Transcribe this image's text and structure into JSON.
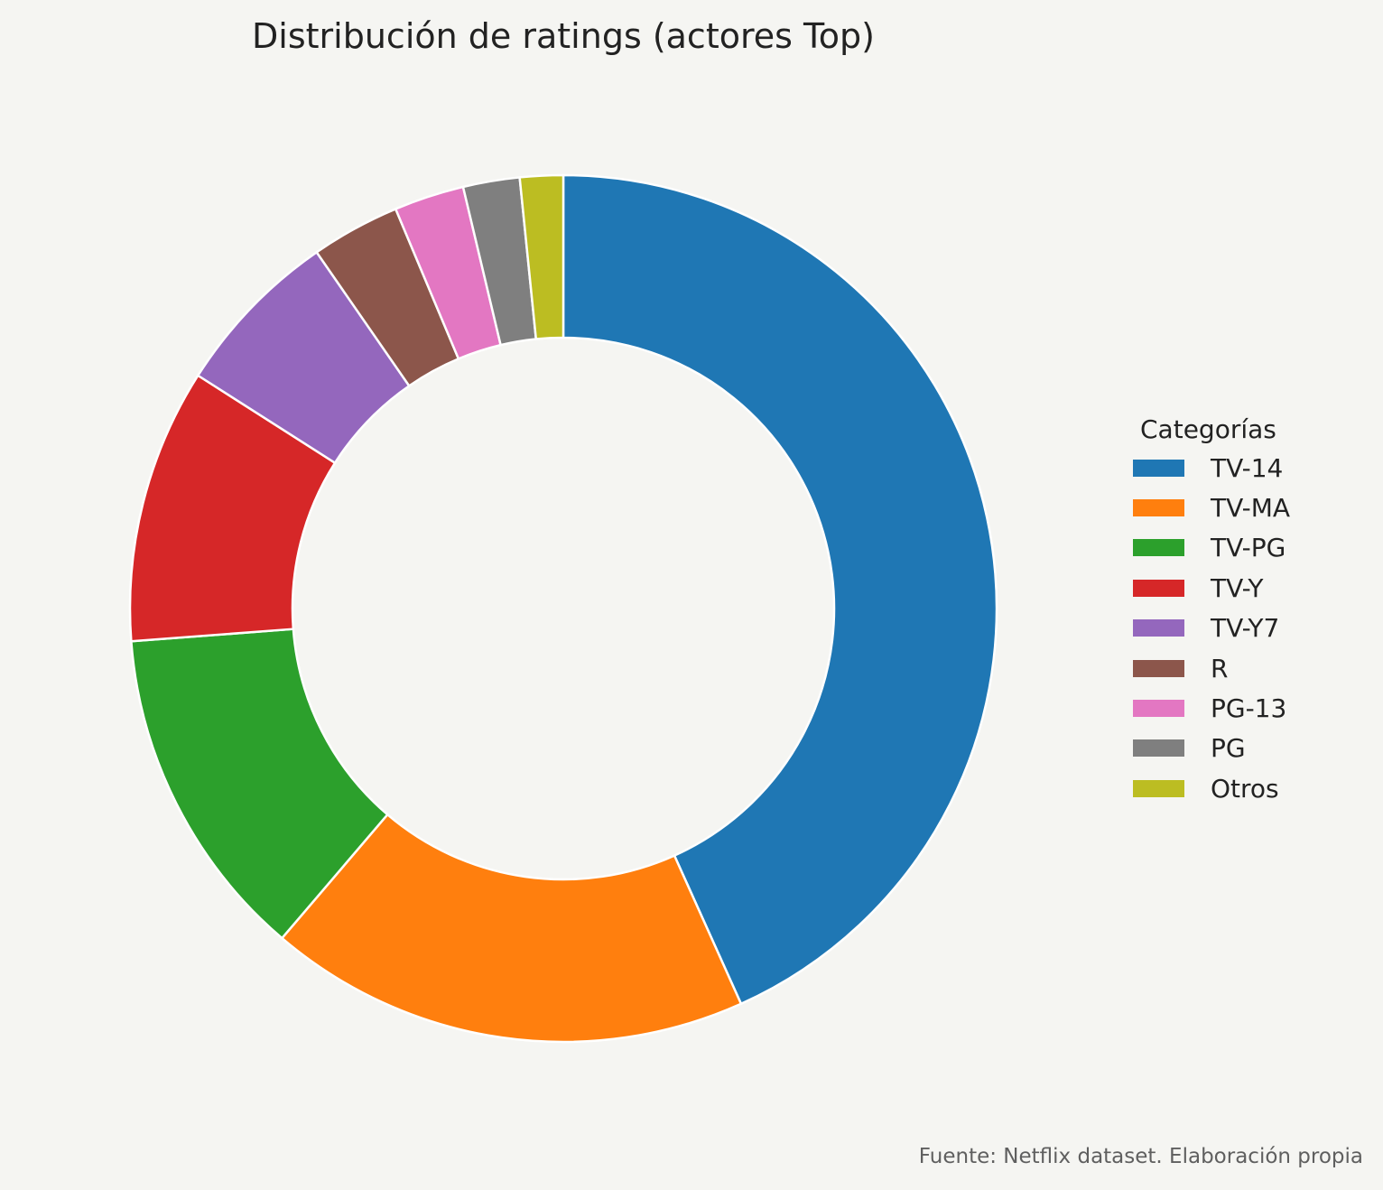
{
  "chart_data": {
    "type": "pie",
    "variant": "donut",
    "title": "Distribución de ratings (actores Top)",
    "legend_title": "Categorías",
    "legend_placement": "right",
    "start_angle": "top",
    "direction": "clockwise",
    "categories": [
      "TV-14",
      "TV-MA",
      "TV-PG",
      "TV-Y",
      "TV-Y7",
      "R",
      "PG-13",
      "PG",
      "Otros"
    ],
    "values": [
      43.1,
      17.9,
      12.5,
      10.2,
      6.3,
      3.3,
      2.6,
      2.1,
      1.6
    ],
    "colors": [
      "#1f77b4",
      "#ff7f0e",
      "#2ca02c",
      "#d62728",
      "#9467bd",
      "#8c564b",
      "#e377c2",
      "#7f7f7f",
      "#bcbd22"
    ],
    "edge_color": "#ffffff",
    "background": "#f5f5f2",
    "source_note": "Fuente: Netflix dataset. Elaboración propia"
  }
}
